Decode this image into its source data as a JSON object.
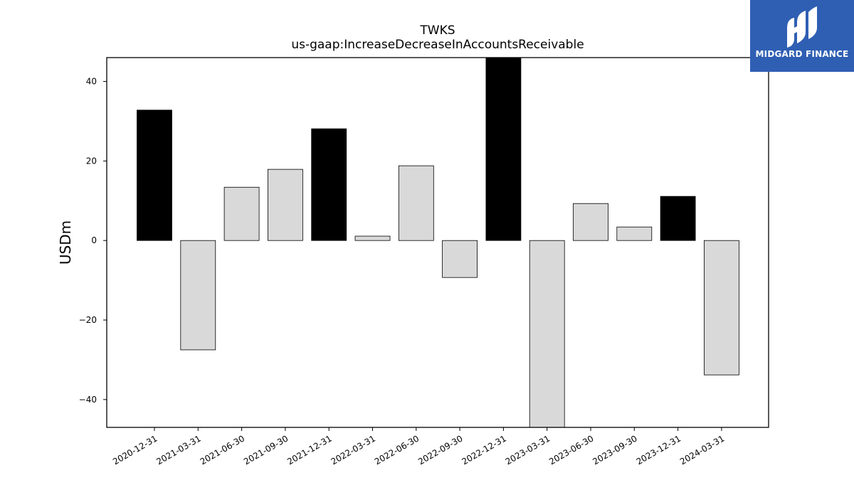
{
  "chart_data": {
    "type": "bar",
    "title": "TWKS",
    "subtitle": "us-gaap:IncreaseDecreaseInAccountsReceivable",
    "xlabel": "",
    "ylabel": "USDm",
    "ylim": [
      -47,
      46
    ],
    "yticks": [
      40,
      20,
      0,
      -20,
      -40
    ],
    "ytick_labels": [
      "40",
      "20",
      "0",
      "−20",
      "−40"
    ],
    "grid": false,
    "categories": [
      "2020-12-31",
      "2021-03-31",
      "2021-06-30",
      "2021-09-30",
      "2021-12-31",
      "2022-03-31",
      "2022-06-30",
      "2022-09-30",
      "2022-12-31",
      "2023-03-31",
      "2023-06-30",
      "2023-09-30",
      "2023-12-31",
      "2024-03-31"
    ],
    "values": [
      32.8,
      -27.5,
      13.4,
      17.9,
      28.1,
      1.1,
      18.8,
      -9.3,
      46.0,
      -47.0,
      9.3,
      3.4,
      11.1,
      -33.8
    ],
    "bar_colors": [
      "#000000",
      "#d9d9d9",
      "#d9d9d9",
      "#d9d9d9",
      "#000000",
      "#d9d9d9",
      "#d9d9d9",
      "#d9d9d9",
      "#000000",
      "#d9d9d9",
      "#d9d9d9",
      "#d9d9d9",
      "#000000",
      "#d9d9d9"
    ]
  },
  "logo": {
    "text": "MIDGARD FINANCE",
    "icon": "midgard-m-logo-icon",
    "background": "#2f5fb3"
  }
}
